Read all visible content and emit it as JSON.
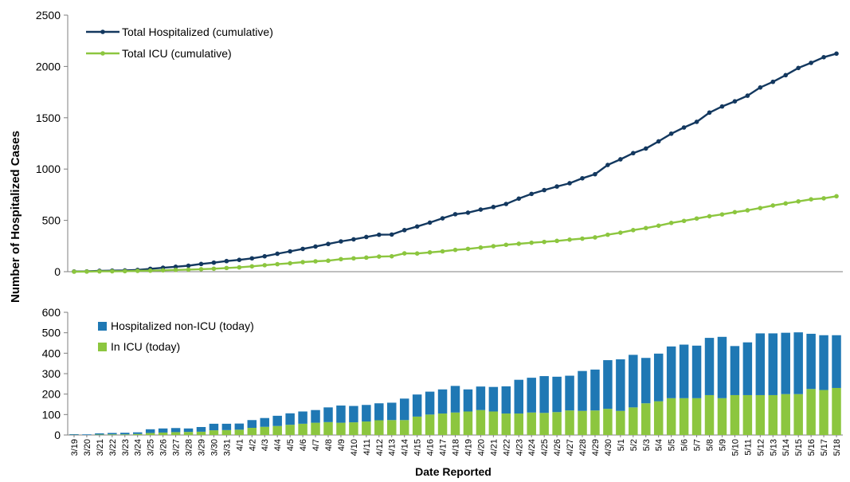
{
  "chart_data": [
    {
      "type": "line",
      "ylabel": "Number of Hospitalized Cases",
      "xlabel": "",
      "ylim": [
        0,
        2500
      ],
      "yticks": [
        0,
        500,
        1000,
        1500,
        2000,
        2500
      ],
      "grid": false,
      "legend_position": "top-left",
      "x": [
        "3/19",
        "3/20",
        "3/21",
        "3/22",
        "3/23",
        "3/24",
        "3/25",
        "3/26",
        "3/27",
        "3/28",
        "3/29",
        "3/30",
        "3/31",
        "4/1",
        "4/2",
        "4/3",
        "4/4",
        "4/5",
        "4/6",
        "4/7",
        "4/8",
        "4/9",
        "4/10",
        "4/11",
        "4/12",
        "4/13",
        "4/14",
        "4/15",
        "4/16",
        "4/17",
        "4/18",
        "4/19",
        "4/20",
        "4/21",
        "4/22",
        "4/23",
        "4/24",
        "4/25",
        "4/26",
        "4/27",
        "4/28",
        "4/29",
        "4/30",
        "5/1",
        "5/2",
        "5/3",
        "5/4",
        "5/5",
        "5/6",
        "5/7",
        "5/8",
        "5/9",
        "5/10",
        "5/11",
        "5/12",
        "5/13",
        "5/14",
        "5/15",
        "5/16",
        "5/17",
        "5/18"
      ],
      "series": [
        {
          "name": "Total Hospitalized (cumulative)",
          "color": "#13385f",
          "values": [
            2,
            3,
            8,
            10,
            12,
            17,
            28,
            38,
            48,
            58,
            75,
            88,
            103,
            115,
            130,
            150,
            175,
            198,
            222,
            245,
            270,
            295,
            315,
            338,
            360,
            362,
            405,
            440,
            478,
            520,
            560,
            575,
            605,
            630,
            660,
            712,
            758,
            795,
            830,
            862,
            910,
            950,
            1040,
            1095,
            1155,
            1200,
            1270,
            1345,
            1405,
            1460,
            1550,
            1610,
            1660,
            1715,
            1795,
            1850,
            1915,
            1985,
            2035,
            2090,
            2125
          ]
        },
        {
          "name": "Total ICU (cumulative)",
          "color": "#8cc63f",
          "values": [
            0,
            1,
            3,
            4,
            5,
            8,
            10,
            13,
            17,
            20,
            24,
            29,
            36,
            42,
            52,
            63,
            73,
            82,
            93,
            101,
            107,
            122,
            130,
            137,
            147,
            150,
            178,
            177,
            188,
            198,
            212,
            222,
            235,
            248,
            262,
            272,
            282,
            290,
            300,
            312,
            322,
            334,
            360,
            380,
            405,
            425,
            448,
            475,
            495,
            518,
            540,
            558,
            580,
            598,
            620,
            645,
            665,
            685,
            705,
            715,
            735
          ]
        }
      ]
    },
    {
      "type": "bar",
      "stacked": true,
      "xlabel": "Date Reported",
      "ylim": [
        0,
        600
      ],
      "yticks": [
        0,
        100,
        200,
        300,
        400,
        500,
        600
      ],
      "grid": false,
      "legend_position": "top-left",
      "categories": [
        "3/19",
        "3/20",
        "3/21",
        "3/22",
        "3/23",
        "3/24",
        "3/25",
        "3/26",
        "3/27",
        "3/28",
        "3/29",
        "3/30",
        "3/31",
        "4/1",
        "4/2",
        "4/3",
        "4/4",
        "4/5",
        "4/6",
        "4/7",
        "4/8",
        "4/9",
        "4/10",
        "4/11",
        "4/12",
        "4/13",
        "4/14",
        "4/15",
        "4/16",
        "4/17",
        "4/18",
        "4/19",
        "4/20",
        "4/21",
        "4/22",
        "4/23",
        "4/24",
        "4/25",
        "4/26",
        "4/27",
        "4/28",
        "4/29",
        "4/30",
        "5/1",
        "5/2",
        "5/3",
        "5/4",
        "5/5",
        "5/6",
        "5/7",
        "5/8",
        "5/9",
        "5/10",
        "5/11",
        "5/12",
        "5/13",
        "5/14",
        "5/15",
        "5/16",
        "5/17",
        "5/18"
      ],
      "series": [
        {
          "name": "In ICU (today)",
          "color": "#8cc63f",
          "values": [
            1,
            0,
            2,
            3,
            3,
            5,
            10,
            12,
            14,
            15,
            16,
            23,
            24,
            26,
            35,
            40,
            44,
            50,
            55,
            60,
            63,
            60,
            62,
            66,
            72,
            73,
            73,
            90,
            100,
            105,
            110,
            115,
            122,
            115,
            105,
            105,
            110,
            108,
            112,
            120,
            118,
            120,
            128,
            118,
            135,
            155,
            165,
            180,
            180,
            180,
            195,
            180,
            195,
            195,
            195,
            195,
            200,
            200,
            225,
            220,
            230
          ]
        },
        {
          "name": "Hospitalized non-ICU (today)",
          "color": "#1f78b4",
          "values": [
            3,
            3,
            6,
            7,
            8,
            8,
            18,
            20,
            20,
            17,
            23,
            32,
            31,
            30,
            38,
            43,
            50,
            56,
            60,
            62,
            72,
            84,
            80,
            81,
            83,
            85,
            105,
            108,
            112,
            118,
            130,
            108,
            115,
            120,
            133,
            165,
            170,
            180,
            173,
            170,
            195,
            200,
            238,
            252,
            257,
            222,
            233,
            253,
            262,
            257,
            280,
            300,
            240,
            258,
            302,
            302,
            300,
            302,
            270,
            268,
            258
          ]
        }
      ]
    }
  ]
}
